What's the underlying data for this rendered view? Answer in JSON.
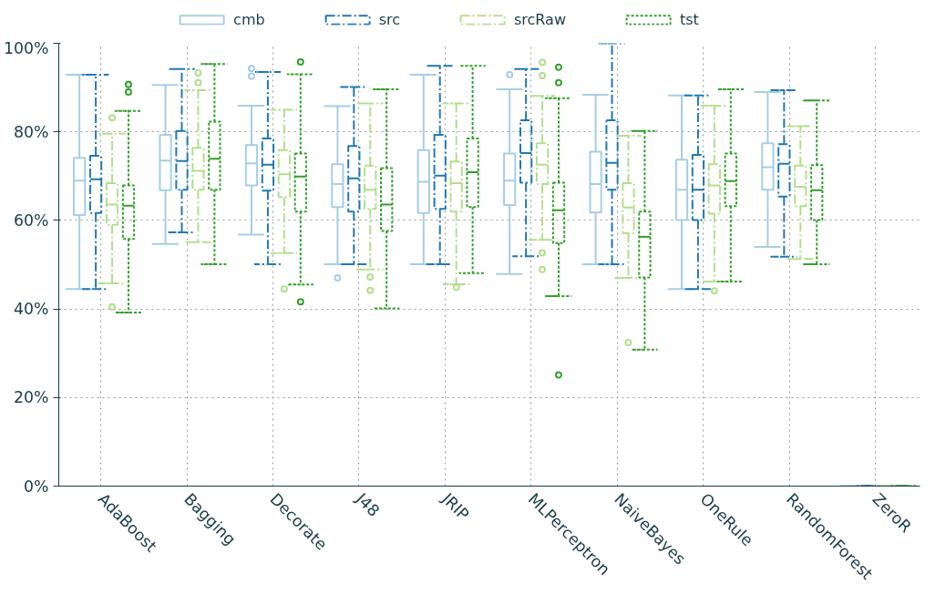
{
  "chart_data": {
    "type": "box",
    "categories": [
      "AdaBoost",
      "Bagging",
      "Decorate",
      "J48",
      "JRIP",
      "MLPerceptron",
      "NaiveBayes",
      "OneRule",
      "RandomForest",
      "ZeroR"
    ],
    "ylim": [
      0,
      100
    ],
    "yticks": [
      {
        "value": 0,
        "label": "0%"
      },
      {
        "value": 20,
        "label": "20%"
      },
      {
        "value": 40,
        "label": "40%"
      },
      {
        "value": 60,
        "label": "60%"
      },
      {
        "value": 80,
        "label": "80%"
      },
      {
        "value": 100,
        "label": "100%"
      }
    ],
    "grid": true,
    "legend": "top",
    "marker": "circle",
    "series": [
      {
        "name": "cmb",
        "color": "#a6cee3",
        "line_style": "solid",
        "boxes": [
          {
            "low": 44.5,
            "q1": 61.2,
            "median": 69.0,
            "q3": 74.1,
            "high": 92.9
          },
          {
            "low": 54.7,
            "q1": 66.8,
            "median": 73.5,
            "q3": 79.3,
            "high": 90.6
          },
          {
            "low": 56.8,
            "q1": 67.9,
            "median": 72.9,
            "q3": 77.0,
            "high": 85.9,
            "outliers": [
              94.3,
              92.6
            ]
          },
          {
            "low": 50.1,
            "q1": 63.0,
            "median": 68.2,
            "q3": 72.7,
            "high": 85.8,
            "outliers": [
              47.0
            ]
          },
          {
            "low": 50.1,
            "q1": 61.7,
            "median": 68.7,
            "q3": 75.9,
            "high": 92.9
          },
          {
            "low": 47.9,
            "q1": 63.5,
            "median": 69.0,
            "q3": 75.1,
            "high": 89.6,
            "outliers": [
              92.9
            ]
          },
          {
            "low": 50.1,
            "q1": 61.8,
            "median": 68.2,
            "q3": 75.5,
            "high": 88.4
          },
          {
            "low": 44.5,
            "q1": 60.1,
            "median": 66.9,
            "q3": 73.7,
            "high": 88.2
          },
          {
            "low": 54.0,
            "q1": 66.9,
            "median": 72.0,
            "q3": 77.4,
            "high": 89.0
          },
          {
            "low": 0,
            "q1": 0,
            "median": 0,
            "q3": 0,
            "high": 0
          }
        ]
      },
      {
        "name": "src",
        "color": "#1f78b4",
        "line_style": "dashed",
        "boxes": [
          {
            "low": 44.5,
            "q1": 61.7,
            "median": 69.3,
            "q3": 74.6,
            "high": 92.9
          },
          {
            "low": 57.3,
            "q1": 66.9,
            "median": 73.4,
            "q3": 80.2,
            "high": 94.2
          },
          {
            "low": 50.1,
            "q1": 66.7,
            "median": 72.6,
            "q3": 78.5,
            "high": 93.5
          },
          {
            "low": 50.1,
            "q1": 62.0,
            "median": 69.5,
            "q3": 76.8,
            "high": 90.1
          },
          {
            "low": 50.1,
            "q1": 62.6,
            "median": 70.1,
            "q3": 79.3,
            "high": 94.9
          },
          {
            "low": 51.9,
            "q1": 68.5,
            "median": 75.2,
            "q3": 82.6,
            "high": 94.2
          },
          {
            "low": 50.1,
            "q1": 66.9,
            "median": 73.0,
            "q3": 82.6,
            "high": 100
          },
          {
            "low": 44.5,
            "q1": 60.1,
            "median": 66.9,
            "q3": 74.8,
            "high": 88.2
          },
          {
            "low": 51.8,
            "q1": 65.4,
            "median": 72.8,
            "q3": 77.2,
            "high": 89.4
          },
          {
            "low": 0,
            "q1": 0,
            "median": 0,
            "q3": 0,
            "high": 0
          }
        ]
      },
      {
        "name": "srcRaw",
        "color": "#b2df8a",
        "line_style": "dashed",
        "boxes": [
          {
            "low": 45.8,
            "q1": 59.0,
            "median": 63.6,
            "q3": 68.4,
            "high": 79.6,
            "outliers": [
              83.2,
              40.5
            ]
          },
          {
            "low": 55.1,
            "q1": 66.9,
            "median": 71.2,
            "q3": 76.4,
            "high": 89.4,
            "outliers": [
              93.3,
              91.1
            ]
          },
          {
            "low": 52.6,
            "q1": 65.3,
            "median": 70.4,
            "q3": 75.9,
            "high": 85.0,
            "outliers": [
              44.5
            ]
          },
          {
            "low": 48.9,
            "q1": 62.6,
            "median": 66.9,
            "q3": 72.4,
            "high": 86.4,
            "outliers": [
              47.2,
              44.2
            ]
          },
          {
            "low": 45.6,
            "q1": 62.0,
            "median": 68.4,
            "q3": 73.3,
            "high": 86.4,
            "outliers": [
              44.9
            ]
          },
          {
            "low": 55.6,
            "q1": 68.2,
            "median": 72.6,
            "q3": 77.4,
            "high": 88.1,
            "outliers": [
              95.7,
              92.7,
              52.7,
              48.9
            ]
          },
          {
            "low": 47.0,
            "q1": 57.1,
            "median": 62.9,
            "q3": 68.4,
            "high": 79.1,
            "outliers": [
              32.4
            ]
          },
          {
            "low": 46.2,
            "q1": 61.5,
            "median": 67.9,
            "q3": 72.7,
            "high": 85.9,
            "outliers": [
              44.1
            ]
          },
          {
            "low": 51.3,
            "q1": 63.2,
            "median": 67.6,
            "q3": 72.4,
            "high": 81.3
          },
          {
            "low": 0,
            "q1": 0,
            "median": 0,
            "q3": 0,
            "high": 0
          }
        ]
      },
      {
        "name": "tst",
        "color": "#33a02c",
        "line_style": "dotted",
        "boxes": [
          {
            "low": 39.2,
            "q1": 55.8,
            "median": 63.3,
            "q3": 67.9,
            "high": 84.7,
            "outliers": [
              90.7,
              89.0
            ]
          },
          {
            "low": 50.1,
            "q1": 66.9,
            "median": 73.9,
            "q3": 82.3,
            "high": 95.3
          },
          {
            "low": 45.5,
            "q1": 62.0,
            "median": 69.9,
            "q3": 75.1,
            "high": 93.0,
            "outliers": [
              95.8,
              41.6
            ]
          },
          {
            "low": 40.1,
            "q1": 57.6,
            "median": 63.6,
            "q3": 71.8,
            "high": 89.6
          },
          {
            "low": 48.1,
            "q1": 63.0,
            "median": 70.9,
            "q3": 78.5,
            "high": 94.9
          },
          {
            "low": 42.9,
            "q1": 54.9,
            "median": 62.3,
            "q3": 68.5,
            "high": 87.6,
            "outliers": [
              94.6,
              91.1,
              25.1
            ]
          },
          {
            "low": 30.8,
            "q1": 47.1,
            "median": 56.3,
            "q3": 62.0,
            "high": 80.2
          },
          {
            "low": 46.2,
            "q1": 63.2,
            "median": 68.9,
            "q3": 75.1,
            "high": 89.6
          },
          {
            "low": 50.1,
            "q1": 60.1,
            "median": 66.8,
            "q3": 72.5,
            "high": 87.1
          },
          {
            "low": 0,
            "q1": 0,
            "median": 0,
            "q3": 0,
            "high": 0
          }
        ]
      }
    ]
  }
}
